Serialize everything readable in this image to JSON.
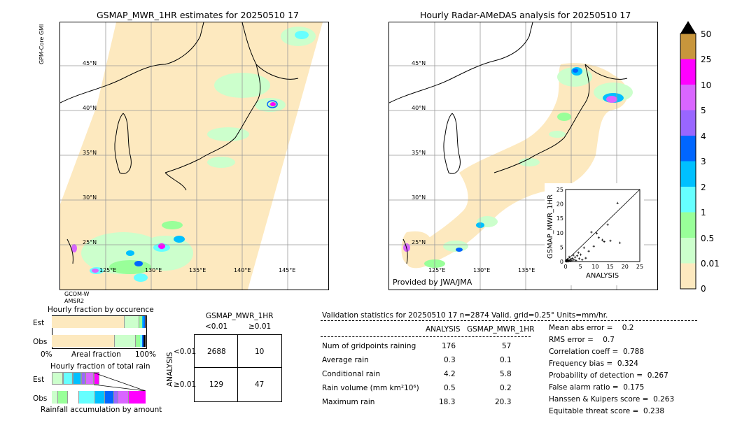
{
  "left_map": {
    "title": "GSMAP_MWR_1HR estimates for 20250510 17",
    "sensor_top": "GPM-Core GMI",
    "sensor_bottom_1": "GCOM-W",
    "sensor_bottom_2": "AMSR2",
    "lat_labels": [
      "45°N",
      "40°N",
      "35°N",
      "30°N",
      "25°N"
    ],
    "lon_labels": [
      "125°E",
      "130°E",
      "135°E",
      "140°E",
      "145°E"
    ]
  },
  "right_map": {
    "title": "Hourly Radar-AMeDAS analysis for 20250510 17",
    "credit": "Provided by JWA/JMA",
    "lat_labels": [
      "45°N",
      "40°N",
      "35°N",
      "30°N",
      "25°N"
    ],
    "lon_labels": [
      "125°E",
      "130°E",
      "135°E"
    ]
  },
  "colorbar": {
    "labels": [
      "50",
      "25",
      "10",
      "5",
      "4",
      "3",
      "2",
      "1",
      "0.5",
      "0.01",
      "0"
    ],
    "colors": [
      "#c8963c",
      "#ff00ff",
      "#d966ff",
      "#9966ff",
      "#0066ff",
      "#00c0ff",
      "#66ffff",
      "#99ff99",
      "#ccffcc",
      "#fde9bf"
    ]
  },
  "occurrence": {
    "title": "Hourly fraction by occurence",
    "row_est": "Est",
    "row_obs": "Obs",
    "x_left": "0%",
    "x_mid": "Areal fraction",
    "x_right": "100%"
  },
  "total_rain": {
    "title": "Hourly fraction of total rain",
    "row_est": "Est",
    "row_obs": "Obs",
    "footer": "Rainfall accumulation by amount"
  },
  "contingency": {
    "col_title": "GSMAP_MWR_1HR",
    "col_lt": "<0.01",
    "col_ge": "≥0.01",
    "row_title": "ANALYSIS",
    "row_lt": "<0.01",
    "row_ge": "≥0.01",
    "cells": [
      "2688",
      "10",
      "129",
      "47"
    ]
  },
  "validation": {
    "header": "Validation statistics for 20250510 17  n=2874 Valid. grid=0.25° Units=mm/hr.",
    "col_analysis": "ANALYSIS",
    "col_gsmap": "GSMAP_MWR_1HR",
    "rows": [
      {
        "label": "Num of gridpoints raining",
        "analysis": "176",
        "gsmap": "57"
      },
      {
        "label": "Average rain",
        "analysis": "0.3",
        "gsmap": "0.1"
      },
      {
        "label": "Conditional rain",
        "analysis": "4.2",
        "gsmap": "5.8"
      },
      {
        "label": "Rain volume (mm km²10⁶)",
        "analysis": "0.5",
        "gsmap": "0.2"
      },
      {
        "label": "Maximum rain",
        "analysis": "18.3",
        "gsmap": "20.3"
      }
    ],
    "scores": [
      "Mean abs error =    0.2",
      "RMS error =    0.7",
      "Correlation coeff =  0.788",
      "Frequency bias =  0.324",
      "Probability of detection =  0.267",
      "False alarm ratio =  0.175",
      "Hanssen & Kuipers score =  0.263",
      "Equitable threat score =  0.238"
    ]
  },
  "chart_data": {
    "type": "scatter",
    "xlabel": "ANALYSIS",
    "ylabel": "GSMAP_MWR_1HR",
    "xlim": [
      0,
      25
    ],
    "ylim": [
      0,
      25
    ],
    "ticks": [
      "0",
      "5",
      "10",
      "15",
      "20",
      "25"
    ],
    "points": [
      [
        17.5,
        20.3
      ],
      [
        14.2,
        12.8
      ],
      [
        10.5,
        9.8
      ],
      [
        11.2,
        8.3
      ],
      [
        12.4,
        7.5
      ],
      [
        8.7,
        10.2
      ],
      [
        15.1,
        7.2
      ],
      [
        18.3,
        6.5
      ],
      [
        9.5,
        5.3
      ],
      [
        6.2,
        4.8
      ],
      [
        7.8,
        3.6
      ],
      [
        13.0,
        6.9
      ],
      [
        5.1,
        2.4
      ],
      [
        4.3,
        3.1
      ],
      [
        3.2,
        1.5
      ],
      [
        2.6,
        2.2
      ],
      [
        1.8,
        0.9
      ],
      [
        1.2,
        1.6
      ],
      [
        0.8,
        0.4
      ],
      [
        0.6,
        0.8
      ],
      [
        0.4,
        0.2
      ],
      [
        0.3,
        0.5
      ],
      [
        0.2,
        0.1
      ],
      [
        1.5,
        0.2
      ],
      [
        2.1,
        0.3
      ],
      [
        0.9,
        0.1
      ],
      [
        3.5,
        0.4
      ],
      [
        4.6,
        1.0
      ],
      [
        5.6,
        0.6
      ],
      [
        6.8,
        1.2
      ],
      [
        2.8,
        0.6
      ],
      [
        1.1,
        0.3
      ],
      [
        0.5,
        0.3
      ],
      [
        0.7,
        0.1
      ],
      [
        1.4,
        0.5
      ],
      [
        0.2,
        0.3
      ],
      [
        0.1,
        0.2
      ],
      [
        0.3,
        0.1
      ],
      [
        2.3,
        1.1
      ],
      [
        3.9,
        2.0
      ]
    ]
  }
}
